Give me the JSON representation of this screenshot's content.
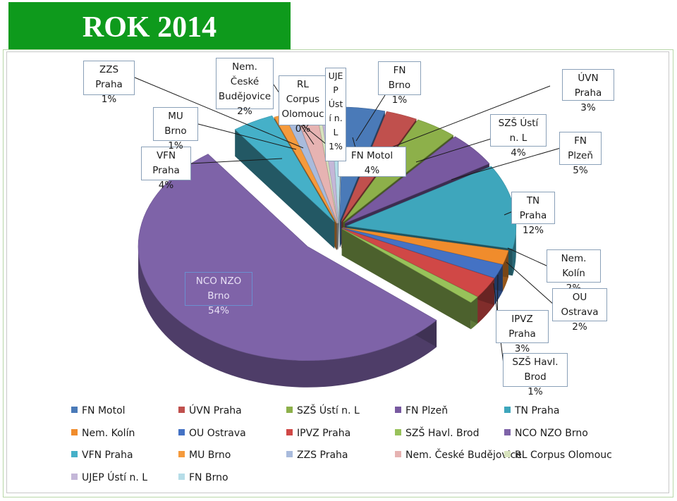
{
  "title": "ROK 2014",
  "chart_data": {
    "type": "pie",
    "title": "",
    "legend_position": "bottom",
    "slices": [
      {
        "name": "FN Motol",
        "label": "FN Motol\n4%",
        "percent": 4,
        "color": "#4a7ab8"
      },
      {
        "name": "ÚVN Praha",
        "label": "ÚVN Praha\n3%",
        "percent": 3,
        "color": "#c0504d"
      },
      {
        "name": "SZŠ Ústí n. L",
        "label": "SZŠ Ústí n. L\n4%",
        "percent": 4,
        "color": "#8db04a"
      },
      {
        "name": "FN Plzeň",
        "label": "FN Plzeň\n5%",
        "percent": 5,
        "color": "#7859a0"
      },
      {
        "name": "TN Praha",
        "label": "TN Praha\n12%",
        "percent": 12,
        "color": "#3ea6bc"
      },
      {
        "name": "Nem. Kolín",
        "label": "Nem. Kolín\n2%",
        "percent": 2,
        "color": "#f08c2c"
      },
      {
        "name": "OU Ostrava",
        "label": "OU Ostrava\n2%",
        "percent": 2,
        "color": "#4472c4"
      },
      {
        "name": "IPVZ Praha",
        "label": "IPVZ Praha\n3%",
        "percent": 3,
        "color": "#d04846"
      },
      {
        "name": "SZŠ Havl. Brod",
        "label": "SZŠ Havl. Brod\n1%",
        "percent": 1,
        "color": "#98c25a"
      },
      {
        "name": "NCO NZO Brno",
        "label": "NCO NZO Brno\n54%",
        "percent": 54,
        "color": "#7e63a8"
      },
      {
        "name": "VFN Praha",
        "label": "VFN Praha\n4%",
        "percent": 4,
        "color": "#45b0c8"
      },
      {
        "name": "MU Brno",
        "label": "MU Brno\n1%",
        "percent": 1,
        "color": "#f59a3c"
      },
      {
        "name": "ZZS Praha",
        "label": "ZZS Praha\n1%",
        "percent": 1,
        "color": "#a9bbdc"
      },
      {
        "name": "Nem. České Budějovice",
        "label": "Nem. České\nBudějovice\n2%",
        "percent": 2,
        "color": "#e6b3b2"
      },
      {
        "name": "RL Corpus Olomouc",
        "label": "RL Corpus\nOlomouc\n0%",
        "percent": 0,
        "color": "#d7e3bd"
      },
      {
        "name": "UJEP Ústí n. L",
        "label": "UJE\nP\nÚst\ní n.\nL\n1%",
        "percent": 1,
        "color": "#c4b7d8"
      },
      {
        "name": "FN Brno",
        "label": "FN Brno\n1%",
        "percent": 1,
        "color": "#b6dde8"
      }
    ]
  }
}
